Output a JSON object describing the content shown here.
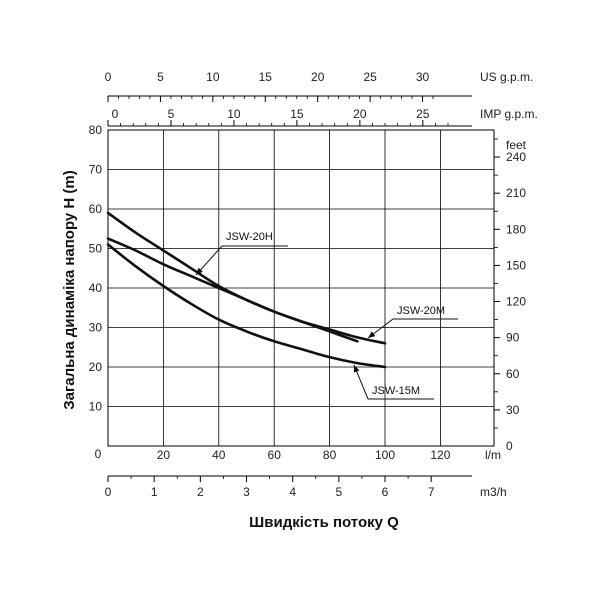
{
  "chart_data": {
    "type": "line",
    "xlabel": "Швидкість потоку Q",
    "ylabel": "Загальна динаміка напору H (m)",
    "grid": true,
    "xlim": [
      0,
      140
    ],
    "ylim": [
      0,
      80
    ],
    "x_unit": "l/m",
    "y_ticks": [
      10,
      20,
      30,
      40,
      50,
      60,
      70,
      80
    ],
    "y_zero": "0",
    "x_ticks": [
      0,
      20,
      40,
      60,
      80,
      100,
      120
    ],
    "feet_axis": {
      "unit": "feet",
      "ticks": [
        0,
        30,
        60,
        90,
        120,
        150,
        180,
        210,
        240
      ]
    },
    "us_axis": {
      "unit": "US g.p.m.",
      "ticks": [
        0,
        5,
        10,
        15,
        20,
        25,
        30
      ]
    },
    "imp_axis": {
      "unit": "IMP g.p.m.",
      "ticks": [
        0,
        5,
        10,
        15,
        20,
        25
      ]
    },
    "m3h_axis": {
      "unit": "m3/h",
      "ticks": [
        0,
        1,
        2,
        3,
        4,
        5,
        6,
        7
      ]
    },
    "series": [
      {
        "name": "JSW-20H",
        "x": [
          0,
          10,
          20,
          30,
          40,
          50,
          60,
          70,
          80,
          90,
          100
        ],
        "y": [
          59,
          54,
          49.5,
          45,
          40.5,
          37,
          34,
          31.5,
          29.5,
          27.5,
          26
        ]
      },
      {
        "name": "JSW-20M",
        "x": [
          0,
          10,
          20,
          30,
          40,
          50,
          60,
          70,
          80,
          90
        ],
        "y": [
          52.5,
          49.5,
          46,
          43,
          40,
          37,
          34,
          31.5,
          29,
          26.5
        ]
      },
      {
        "name": "JSW-15M",
        "x": [
          0,
          10,
          20,
          30,
          40,
          50,
          60,
          70,
          80,
          90,
          100
        ],
        "y": [
          51,
          45.5,
          40.5,
          36,
          32,
          29,
          26.5,
          24.5,
          22.5,
          21,
          20
        ]
      }
    ]
  }
}
